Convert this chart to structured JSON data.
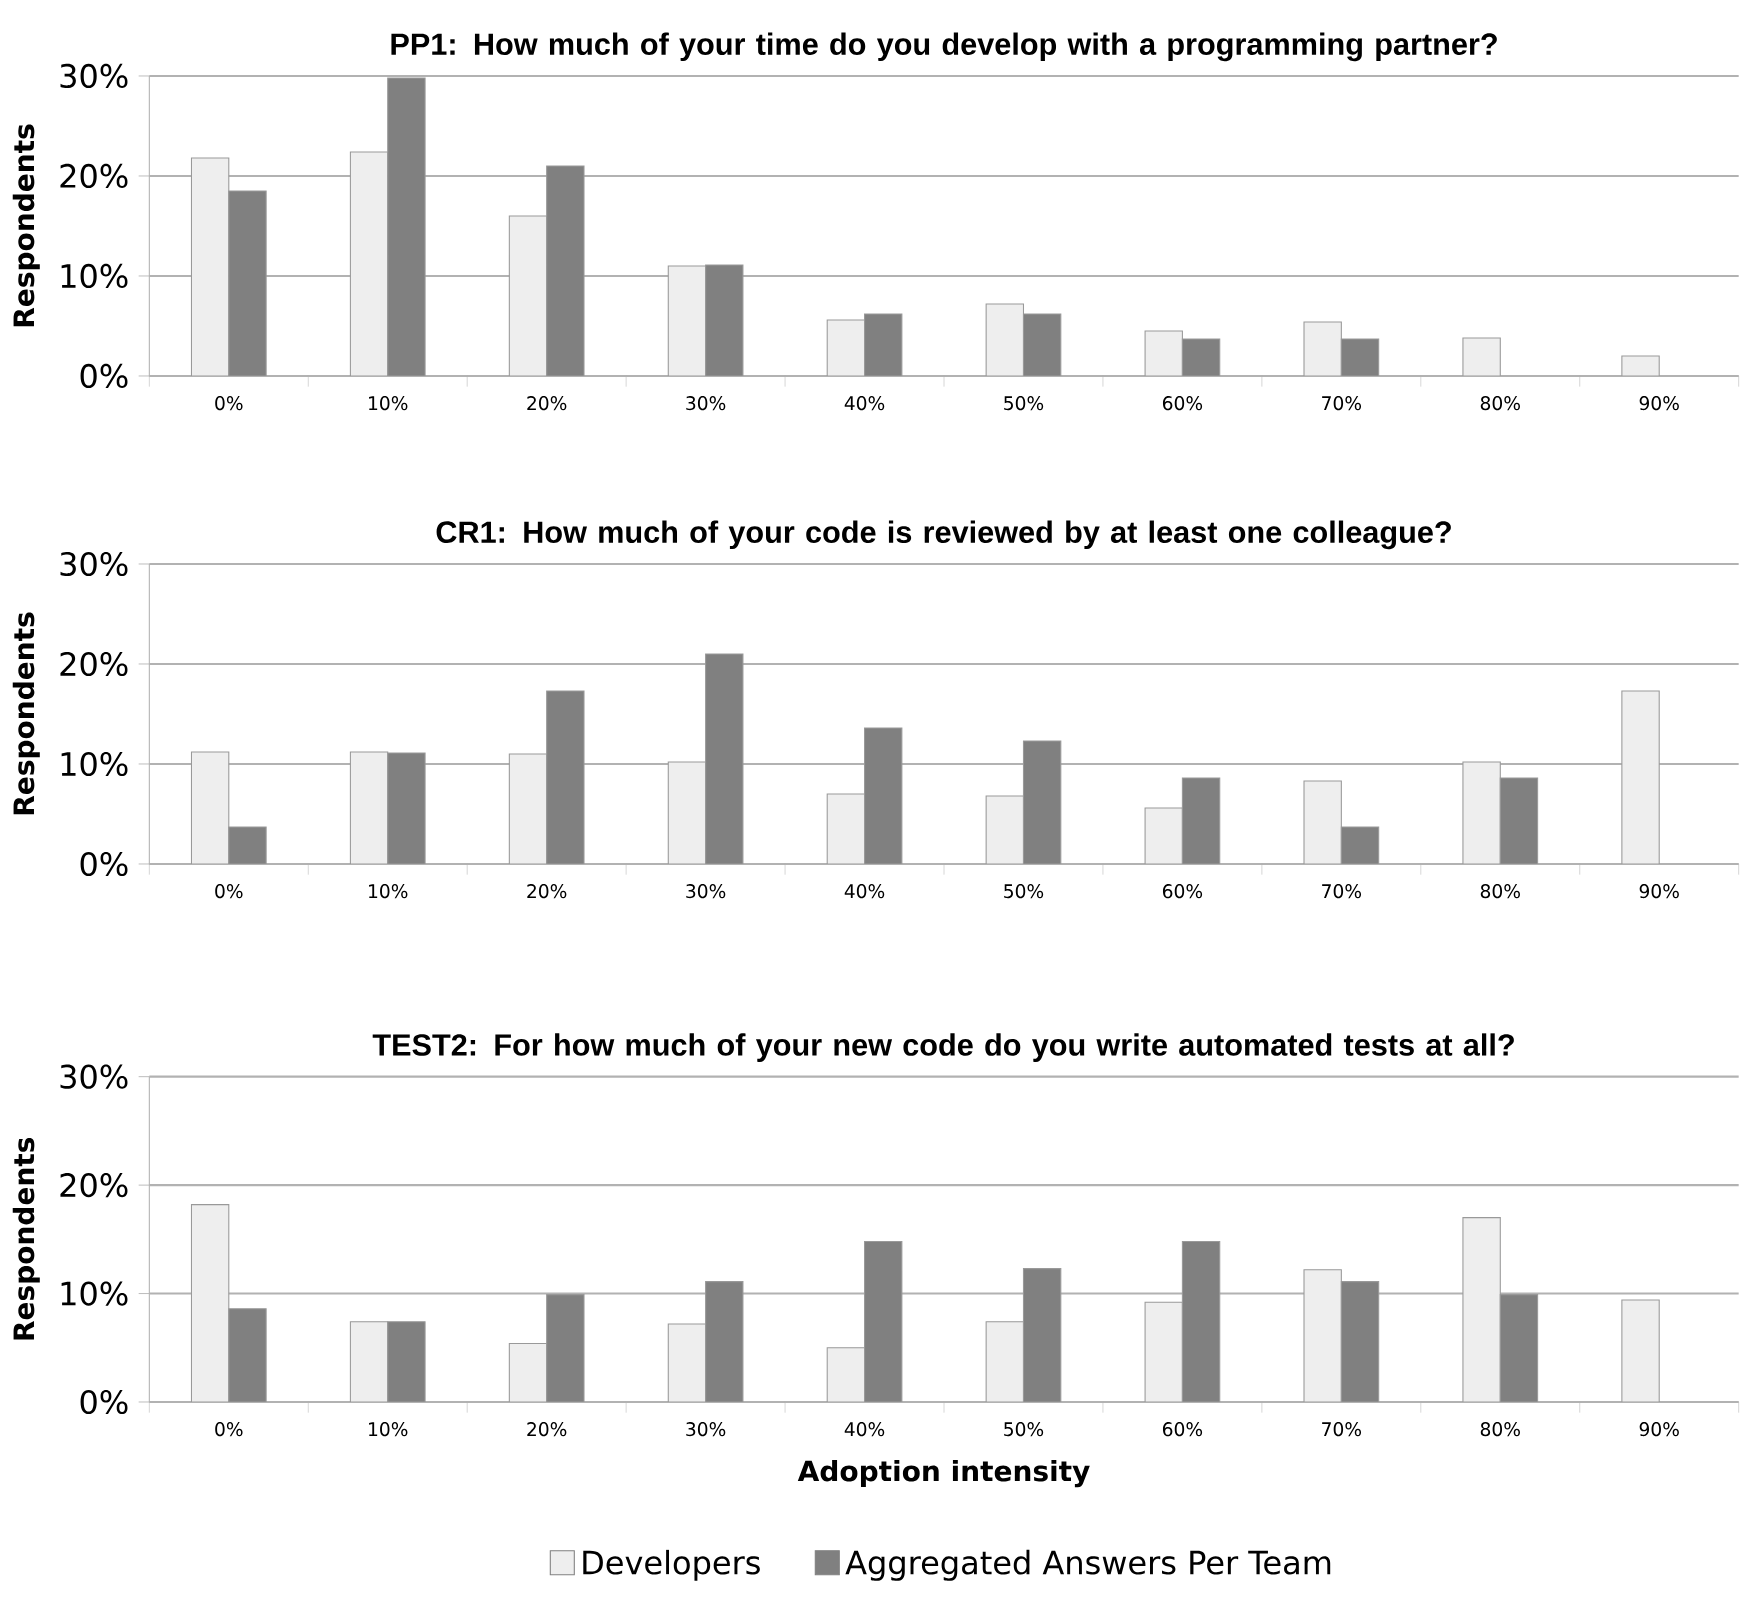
{
  "chart_data": [
    {
      "type": "bar",
      "title": "PP1: How much of your time do you develop with a programming partner?",
      "ylabel": "Respondents",
      "categories": [
        "0%",
        "10%",
        "20%",
        "30%",
        "40%",
        "50%",
        "60%",
        "70%",
        "80%",
        "90%"
      ],
      "series": [
        {
          "color": "#eeeeee",
          "values": [
            21.8,
            22.4,
            16,
            11,
            5.6,
            7.2,
            4.5,
            5.4,
            3.8,
            2.0
          ]
        },
        {
          "color": "#808080",
          "values": [
            18.5,
            29.8,
            21,
            11.1,
            6.2,
            6.2,
            3.7,
            3.7,
            null,
            null
          ]
        }
      ],
      "ylim": [
        0,
        30
      ],
      "yticks": [
        {
          "value": 0,
          "label": "0%"
        },
        {
          "value": 10,
          "label": "10%"
        },
        {
          "value": 20,
          "label": "20%"
        },
        {
          "value": 30,
          "label": "30%"
        }
      ],
      "grid": "y"
    },
    {
      "type": "bar",
      "title": "CR1: How much of your code is reviewed by at least one colleague?",
      "ylabel": "Respondents",
      "categories": [
        "0%",
        "10%",
        "20%",
        "30%",
        "40%",
        "50%",
        "60%",
        "70%",
        "80%",
        "90%"
      ],
      "series": [
        {
          "color": "#eeeeee",
          "values": [
            11.2,
            11.2,
            11,
            10.2,
            7,
            6.8,
            5.6,
            8.3,
            10.2,
            17.3
          ]
        },
        {
          "color": "#808080",
          "values": [
            3.7,
            11.1,
            17.3,
            21,
            13.6,
            12.3,
            8.6,
            3.7,
            8.6,
            null
          ]
        }
      ],
      "ylim": [
        0,
        30
      ],
      "yticks": [
        {
          "value": 0,
          "label": "0%"
        },
        {
          "value": 10,
          "label": "10%"
        },
        {
          "value": 20,
          "label": "20%"
        },
        {
          "value": 30,
          "label": "30%"
        }
      ],
      "grid": "y"
    },
    {
      "type": "bar",
      "title": "TEST2: For how much of your new code do you write automated tests at all?",
      "ylabel": "Respondents",
      "xlabel": "Adoption intensity",
      "categories": [
        "0%",
        "10%",
        "20%",
        "30%",
        "40%",
        "50%",
        "60%",
        "70%",
        "80%",
        "90%"
      ],
      "series": [
        {
          "name": "Developers",
          "color": "#eeeeee",
          "values": [
            18.2,
            7.4,
            5.4,
            7.2,
            5,
            7.4,
            9.2,
            12.2,
            17,
            9.4
          ]
        },
        {
          "name": "Aggregated Answers Per Team",
          "color": "#808080",
          "values": [
            8.6,
            7.4,
            9.9,
            11.1,
            14.8,
            12.3,
            14.8,
            11.1,
            9.9,
            null
          ]
        }
      ],
      "ylim": [
        0,
        30
      ],
      "yticks": [
        {
          "value": 0,
          "label": "0%"
        },
        {
          "value": 10,
          "label": "10%"
        },
        {
          "value": 20,
          "label": "20%"
        },
        {
          "value": 30,
          "label": "30%"
        }
      ],
      "grid": "y",
      "legend": "bottom"
    }
  ]
}
